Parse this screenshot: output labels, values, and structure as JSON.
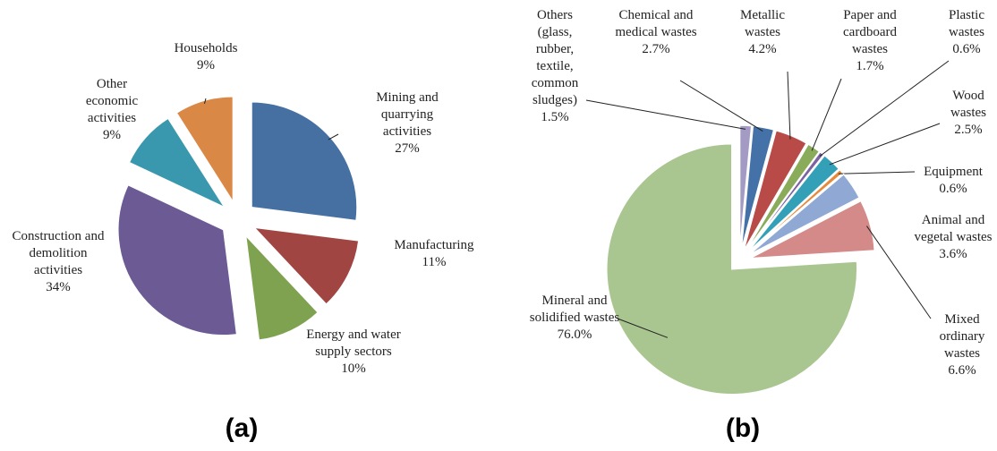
{
  "chart_data": [
    {
      "type": "pie",
      "caption": "(a)",
      "categories": [
        "Mining and quarrying activities",
        "Manufacturing",
        "Energy and water supply sectors",
        "Construction and demolition activities",
        "Other economic activities",
        "Households"
      ],
      "values": [
        27,
        11,
        10,
        34,
        9,
        9
      ],
      "value_labels": [
        "27%",
        "11%",
        "10%",
        "34%",
        "9%",
        "9%"
      ],
      "colors": [
        "#4570a1",
        "#a04542",
        "#7fa250",
        "#6b5a94",
        "#3a98ae",
        "#d98845"
      ]
    },
    {
      "type": "pie",
      "caption": "(b)",
      "categories": [
        "Others (glass, rubber, textile, common sludges)",
        "Chemical and medical wastes",
        "Metallic wastes",
        "Paper and cardboard wastes",
        "Plastic wastes",
        "Wood wastes",
        "Equipment",
        "Animal and vegetal wastes",
        "Mixed ordinary wastes",
        "Mineral and solidified wastes"
      ],
      "values": [
        1.5,
        2.7,
        4.2,
        1.7,
        0.6,
        2.5,
        0.6,
        3.6,
        6.6,
        76.0
      ],
      "value_labels": [
        "1.5%",
        "2.7%",
        "4.2%",
        "1.7%",
        "0.6%",
        "2.5%",
        "0.6%",
        "3.6%",
        "6.6%",
        "76.0%"
      ],
      "colors": [
        "#a39bc4",
        "#4472a8",
        "#b84a48",
        "#8aab5a",
        "#7b62a0",
        "#33a0b8",
        "#e5893c",
        "#8fa8d4",
        "#d38a88",
        "#a9c590"
      ]
    }
  ]
}
